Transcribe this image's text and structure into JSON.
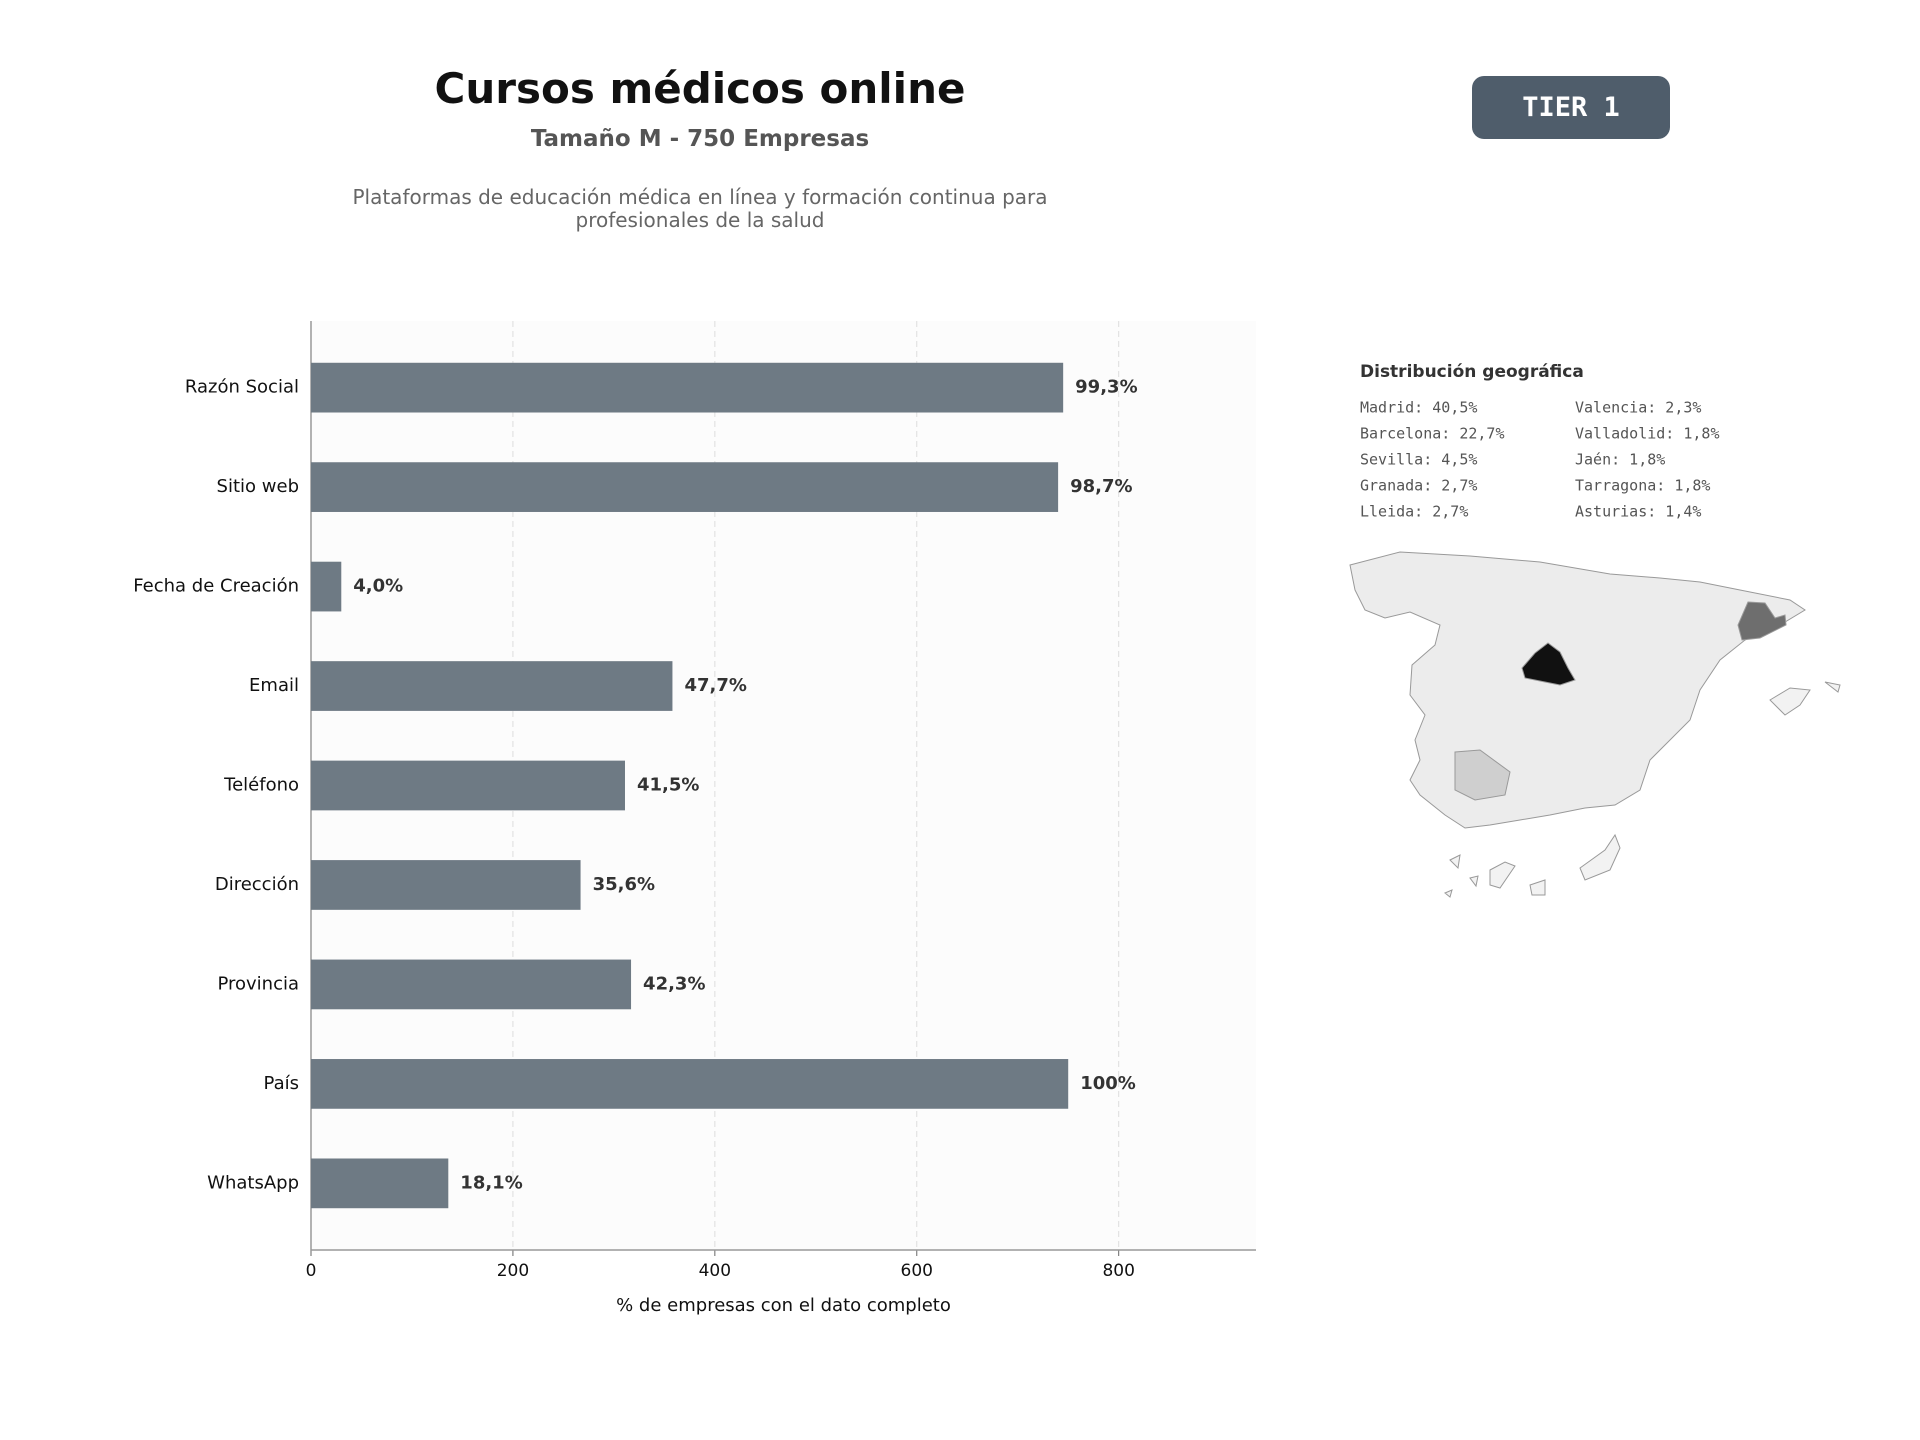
{
  "header": {
    "title": "Cursos médicos online",
    "subtitle": "Tamaño M - 750 Empresas",
    "description": "Plataformas de educación médica en línea y formación continua para profesionales de la salud"
  },
  "badge": "TIER 1",
  "chart_data": {
    "type": "barh",
    "x_label": "% de empresas con el dato completo",
    "categories": [
      "Razón Social",
      "Sitio web",
      "Fecha de Creación",
      "Email",
      "Teléfono",
      "Dirección",
      "Provincia",
      "País",
      "WhatsApp"
    ],
    "values": [
      745,
      740,
      30,
      358,
      311,
      267,
      317,
      750,
      136
    ],
    "value_labels": [
      "99,3%",
      "98,7%",
      "4,0%",
      "47,7%",
      "41,5%",
      "35,6%",
      "42,3%",
      "100%",
      "18,1%"
    ],
    "color": "#6e7a84",
    "xlim": [
      0,
      936
    ],
    "xticks": [
      0,
      200,
      400,
      600,
      800
    ],
    "grid": true
  },
  "geo": {
    "title": "Distribución geográfica",
    "items": [
      "Madrid: 40,5%",
      "Barcelona: 22,7%",
      "Sevilla: 4,5%",
      "Granada: 2,7%",
      "Lleida: 2,7%",
      "Valencia: 2,3%",
      "Valladolid: 1,8%",
      "Jaén: 1,8%",
      "Tarragona: 1,8%",
      "Asturias: 1,4%"
    ]
  }
}
